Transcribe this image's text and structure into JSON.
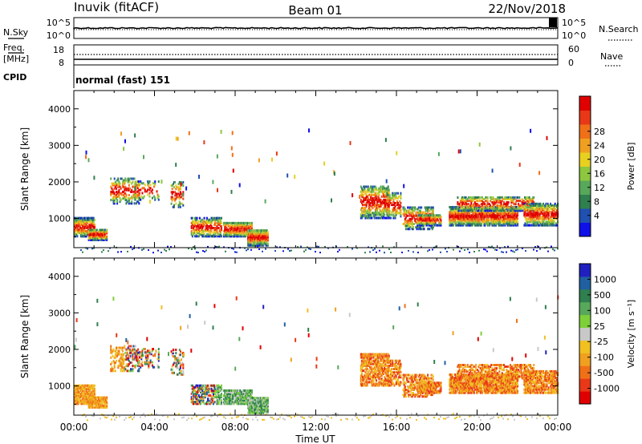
{
  "header": {
    "station": "Inuvik (fitACF)",
    "beam": "Beam 01",
    "date": "22/Nov/2018"
  },
  "noise_panel": {
    "left_label": "N.Sky",
    "right_label": "N.Search",
    "left_ticks": [
      "10^5",
      "10^0"
    ],
    "right_ticks": [
      "10^5",
      "10^0"
    ]
  },
  "freq_panel": {
    "left_label_1": "Freq.",
    "left_label_2": "[MHz]",
    "right_label": "Nave",
    "left_ticks": [
      "18",
      "8"
    ],
    "right_ticks": [
      "60",
      "0"
    ]
  },
  "cpid": {
    "label": "CPID",
    "mode": "normal (fast) 151"
  },
  "chart_data": [
    {
      "type": "heatmap",
      "name_key": "power",
      "ylabel": "Slant Range [km]",
      "yticks": [
        1000,
        2000,
        3000,
        4000
      ],
      "ylim": [
        200,
        4500
      ],
      "xlim_hours": [
        0,
        24
      ],
      "colorbar": {
        "label": "Power [dB]",
        "ticks": [
          "4",
          "8",
          "12",
          "16",
          "20",
          "24",
          "28"
        ],
        "colors": [
          "#1010e8",
          "#2050b0",
          "#2f7f4f",
          "#58a85c",
          "#8ec63f",
          "#e8d020",
          "#f0a020",
          "#f07018",
          "#e83818",
          "#e00000"
        ]
      }
    },
    {
      "type": "heatmap",
      "name_key": "velocity",
      "ylabel": "Slant Range [km]",
      "yticks": [
        1000,
        2000,
        3000,
        4000
      ],
      "ylim": [
        200,
        4500
      ],
      "xlim_hours": [
        0,
        24
      ],
      "colorbar": {
        "label": "Velocity [m s⁻¹]",
        "ticks": [
          "1000",
          "500",
          "100",
          "25",
          "-25",
          "-100",
          "-500",
          "-1000"
        ],
        "colors": [
          "#2020c0",
          "#2060a0",
          "#2f7f4f",
          "#58a85c",
          "#7ed03a",
          "#c8c8c8",
          "#f0c020",
          "#f0a020",
          "#f07018",
          "#e83818",
          "#e00000"
        ]
      }
    }
  ],
  "time_axis": {
    "ticks": [
      "00:00",
      "04:00",
      "08:00",
      "12:00",
      "16:00",
      "20:00",
      "00:00"
    ],
    "xlabel": "Time UT"
  }
}
